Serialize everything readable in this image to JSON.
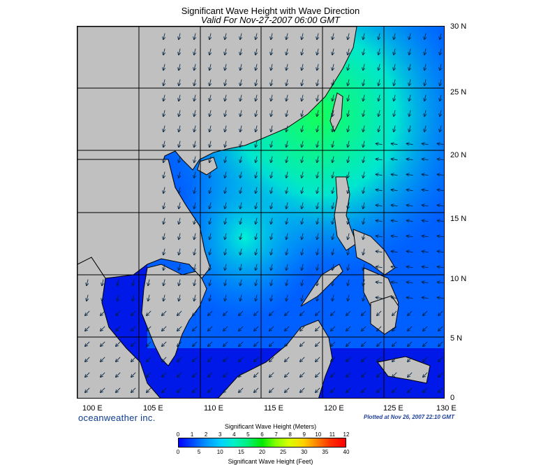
{
  "title": "Significant Wave Height with Wave Direction",
  "subtitle": "Valid For Nov-27-2007 06:00 GMT",
  "lat_labels": [
    "30 N",
    "25 N",
    "20 N",
    "15 N",
    "10 N",
    "5 N",
    "0"
  ],
  "lon_labels": [
    "100 E",
    "105 E",
    "110 E",
    "115 E",
    "120 E",
    "125 E",
    "130 E"
  ],
  "brand": "oceanweather inc.",
  "plotted": "Plotted at Nov 26, 2007 22:10 GMT",
  "colorbar": {
    "meters_title": "Significant Wave Height (Meters)",
    "feet_title": "Significant Wave Height (Feet)",
    "meters_ticks": [
      "0",
      "1",
      "2",
      "3",
      "4",
      "5",
      "6",
      "7",
      "8",
      "9",
      "10",
      "11",
      "12"
    ],
    "feet_ticks": [
      "0",
      "5",
      "10",
      "15",
      "20",
      "25",
      "30",
      "35",
      "40"
    ]
  },
  "colors": {
    "land": "#c0c0c0",
    "low_wave": "#0000ff",
    "mid_wave": "#00e8ff",
    "high_wave": "#00e000"
  }
}
